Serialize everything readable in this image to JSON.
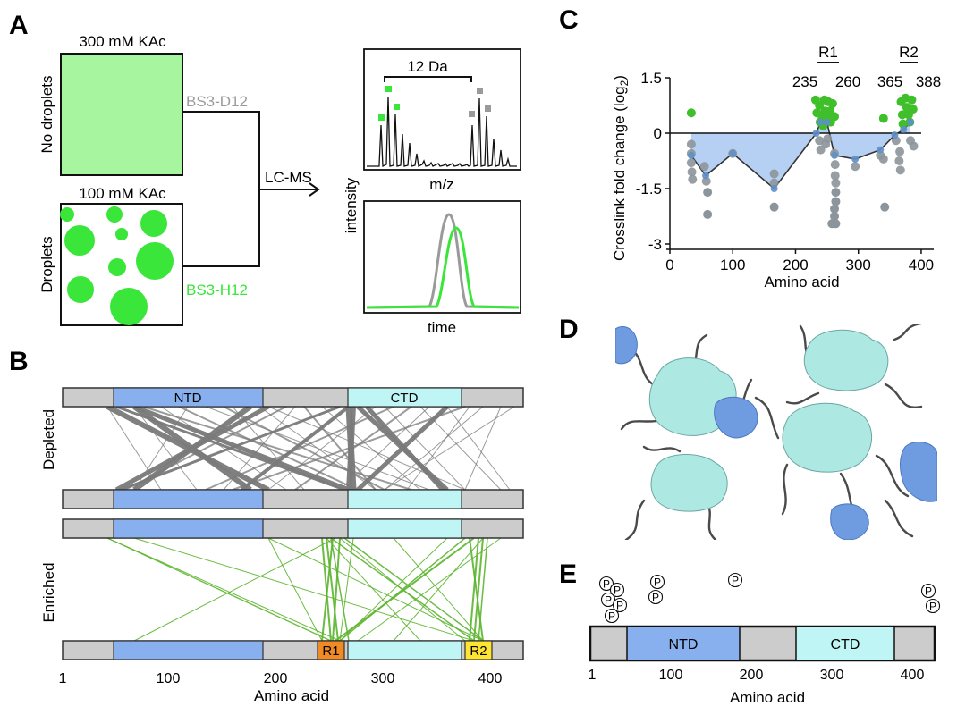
{
  "panels": {
    "a": {
      "letter": "A",
      "top_condition": "300 mM KAc",
      "bottom_condition": "100 mM KAc",
      "top_side_label": "No droplets",
      "bottom_side_label": "Droplets",
      "crosslinker_top": "BS3-D12",
      "crosslinker_bottom": "BS3-H12",
      "method": "LC-MS",
      "spectrum_bracket": "12 Da",
      "spectrum_xlabel": "m/z",
      "y_label": "intensity",
      "elution_xlabel": "time",
      "colors": {
        "green": "#39e639",
        "light_green": "#a8f5a0",
        "gray": "#9a9a9a"
      }
    },
    "b": {
      "letter": "B",
      "row_labels": [
        "Depleted",
        "Enriched"
      ],
      "domains": [
        "NTD",
        "CTD"
      ],
      "regions": [
        "R1",
        "R2"
      ],
      "x_ticks": [
        "1",
        "100",
        "200",
        "300",
        "400"
      ],
      "x_label": "Amino acid",
      "colors": {
        "ntd": "#88b0ee",
        "ctd": "#bff5f5",
        "linker": "#cccccc",
        "r1": "#f08a24",
        "r2": "#ffe433",
        "depleted": "#7a7a7a",
        "enriched": "#5cb52e"
      }
    },
    "c": {
      "letter": "C",
      "region_labels": [
        "R1",
        "R2"
      ],
      "region_bounds": [
        "235",
        "260",
        "365",
        "388"
      ]
    },
    "d": {
      "letter": "D"
    },
    "e": {
      "letter": "E",
      "phospho_symbol": "P",
      "domains": [
        "NTD",
        "CTD"
      ],
      "x_ticks": [
        "1",
        "100",
        "200",
        "300",
        "400"
      ],
      "x_label": "Amino acid"
    }
  },
  "chart_data": {
    "type": "scatter",
    "title": "",
    "xlabel": "Amino acid",
    "ylabel": "Crosslink fold change (log",
    "ylabel_sub": "2",
    "ylabel_end": ")",
    "xlim": [
      0,
      420
    ],
    "ylim": [
      -3,
      1.5
    ],
    "xticks": [
      0,
      100,
      200,
      300,
      400
    ],
    "xtick_labels": [
      "0",
      "100",
      "200",
      "300",
      "400"
    ],
    "yticks": [
      1.5,
      0,
      -1.5,
      -3
    ],
    "ytick_labels": [
      "1.5",
      "0",
      "-1.5",
      "-3"
    ],
    "grid": false,
    "series": [
      {
        "role": "enriched",
        "color": "#3fbf2a",
        "points": [
          [
            34,
            0.55
          ],
          [
            232,
            0.9
          ],
          [
            234,
            0.55
          ],
          [
            238,
            0.75
          ],
          [
            239,
            0.3
          ],
          [
            241,
            0.5
          ],
          [
            244,
            0.2
          ],
          [
            246,
            0.9
          ],
          [
            247,
            0.6
          ],
          [
            250,
            0.4
          ],
          [
            252,
            0.85
          ],
          [
            255,
            0.6
          ],
          [
            256,
            0.3
          ],
          [
            259,
            0.8
          ],
          [
            262,
            0.45
          ],
          [
            340,
            0.4
          ],
          [
            368,
            0.85
          ],
          [
            370,
            0.5
          ],
          [
            371,
            0.25
          ],
          [
            375,
            0.95
          ],
          [
            377,
            0.7
          ],
          [
            380,
            0.5
          ],
          [
            382,
            0.3
          ],
          [
            385,
            0.9
          ],
          [
            387,
            0.65
          ]
        ]
      },
      {
        "role": "depleted",
        "color": "#8c959b",
        "points": [
          [
            34,
            -0.3
          ],
          [
            34,
            -0.55
          ],
          [
            34,
            -0.8
          ],
          [
            35,
            -1.05
          ],
          [
            36,
            -1.25
          ],
          [
            55,
            -0.9
          ],
          [
            58,
            -1.3
          ],
          [
            60,
            -1.6
          ],
          [
            60,
            -2.2
          ],
          [
            100,
            -0.55
          ],
          [
            166,
            -1.1
          ],
          [
            166,
            -1.35
          ],
          [
            166,
            -2.0
          ],
          [
            238,
            -0.2
          ],
          [
            240,
            -0.45
          ],
          [
            248,
            -0.3
          ],
          [
            251,
            -0.15
          ],
          [
            262,
            -0.55
          ],
          [
            263,
            -0.85
          ],
          [
            263,
            -1.15
          ],
          [
            264,
            -1.35
          ],
          [
            264,
            -1.6
          ],
          [
            264,
            -1.85
          ],
          [
            262,
            -2.05
          ],
          [
            262,
            -2.25
          ],
          [
            258,
            -2.45
          ],
          [
            264,
            -2.45
          ],
          [
            295,
            -0.9
          ],
          [
            335,
            -0.6
          ],
          [
            340,
            -0.7
          ],
          [
            342,
            -2.0
          ],
          [
            360,
            -0.2
          ],
          [
            365,
            -0.75
          ],
          [
            366,
            -0.5
          ],
          [
            367,
            -1.0
          ],
          [
            383,
            -0.2
          ],
          [
            388,
            -0.35
          ]
        ]
      },
      {
        "role": "median",
        "color": "#5f8fc8",
        "points": [
          [
            34,
            -0.6
          ],
          [
            57,
            -1.15
          ],
          [
            100,
            -0.55
          ],
          [
            166,
            -1.5
          ],
          [
            233,
            0.0
          ],
          [
            240,
            0.3
          ],
          [
            250,
            0.3
          ],
          [
            262,
            -0.6
          ],
          [
            295,
            -0.7
          ],
          [
            335,
            -0.45
          ],
          [
            358,
            -0.05
          ],
          [
            372,
            0.1
          ],
          [
            383,
            0.3
          ]
        ]
      }
    ]
  }
}
